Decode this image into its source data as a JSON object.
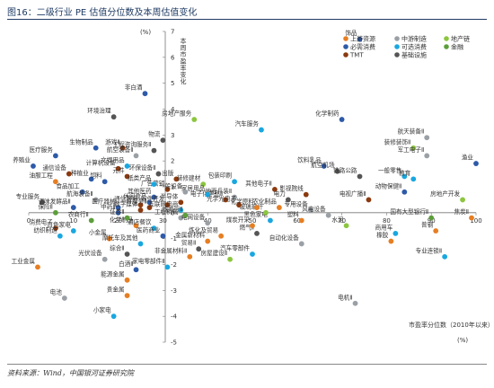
{
  "figure": {
    "title": "图16：二级行业 PE 估值分位数及本周估值变化",
    "source": "资料来源：Wind，中国银河证券研究院"
  },
  "chart_data": {
    "type": "scatter",
    "title": "",
    "xlabel": "市盈率分位数（2010年以来）",
    "xunit": "(%)",
    "ylabel": "本周市盈率变化",
    "yunit": "(%)",
    "xlim": [
      0,
      100
    ],
    "ylim": [
      -5,
      7
    ],
    "xticks": [
      "0",
      "10",
      "20",
      "30",
      "40",
      "50",
      "60",
      "70",
      "80",
      "90",
      "100"
    ],
    "yticks": [
      "-5",
      "-4",
      "-3",
      "-2",
      "-1",
      "0",
      "1",
      "2",
      "3",
      "4",
      "5",
      "6",
      "7"
    ],
    "grid": false,
    "legend_position": "top-right",
    "categories": [
      {
        "key": "upstream",
        "name": "上游资源",
        "color": "#e67e22"
      },
      {
        "key": "midstream",
        "name": "中游制造",
        "color": "#9aa0a6"
      },
      {
        "key": "realestate",
        "name": "地产链",
        "color": "#8cc63f"
      },
      {
        "key": "necessity",
        "name": "必需消费",
        "color": "#2e5aa8"
      },
      {
        "key": "optional",
        "name": "可选消费",
        "color": "#1aa7e0"
      },
      {
        "key": "finance",
        "name": "金融",
        "color": "#5c9e3a"
      },
      {
        "key": "tmt",
        "name": "TMT",
        "color": "#8b3a0f"
      },
      {
        "key": "infra",
        "name": "基础设施",
        "color": "#555555"
      }
    ],
    "points": [
      {
        "label": "饰品",
        "x": 74,
        "y": 6.7,
        "cat": "necessity"
      },
      {
        "label": "非白酒",
        "x": 26,
        "y": 4.6,
        "cat": "necessity"
      },
      {
        "label": "环境治理",
        "x": 19,
        "y": 3.7,
        "cat": "infra"
      },
      {
        "label": "房地产服务",
        "x": 37,
        "y": 3.6,
        "cat": "realestate"
      },
      {
        "label": "化学制药",
        "x": 70,
        "y": 3.6,
        "cat": "necessity"
      },
      {
        "label": "汽车服务",
        "x": 52,
        "y": 3.2,
        "cat": "optional"
      },
      {
        "label": "物流",
        "x": 30,
        "y": 2.8,
        "cat": "infra"
      },
      {
        "label": "航天装备Ⅱ",
        "x": 89,
        "y": 2.9,
        "cat": "midstream"
      },
      {
        "label": "游戏Ⅱ",
        "x": 21,
        "y": 2.5,
        "cat": "tmt"
      },
      {
        "label": "生物制品",
        "x": 15,
        "y": 2.5,
        "cat": "necessity"
      },
      {
        "label": "装修装饰Ⅱ",
        "x": 86,
        "y": 2.5,
        "cat": "realestate"
      },
      {
        "label": "医疗服务",
        "x": 6,
        "y": 2.2,
        "cat": "necessity"
      },
      {
        "label": "工程咨询服务Ⅱ",
        "x": 28,
        "y": 2.4,
        "cat": "infra"
      },
      {
        "label": "航空装备Ⅱ",
        "x": 24,
        "y": 2.2,
        "cat": "midstream"
      },
      {
        "label": "养殖业",
        "x": 1,
        "y": 1.8,
        "cat": "necessity"
      },
      {
        "label": "通信设备",
        "x": 9,
        "y": 1.5,
        "cat": "tmt"
      },
      {
        "label": "军工电子Ⅱ",
        "x": 89,
        "y": 2.2,
        "cat": "midstream"
      },
      {
        "label": "渔业",
        "x": 100,
        "y": 1.9,
        "cat": "necessity"
      },
      {
        "label": "饮料乳品",
        "x": 66,
        "y": 1.8,
        "cat": "necessity"
      },
      {
        "label": "计算机设备",
        "x": 20,
        "y": 1.7,
        "cat": "tmt"
      },
      {
        "label": "文娱用品",
        "x": 22,
        "y": 1.8,
        "cat": "optional"
      },
      {
        "label": "航空机场",
        "x": 69,
        "y": 1.6,
        "cat": "infra"
      },
      {
        "label": "油服工程",
        "x": 6,
        "y": 1.2,
        "cat": "upstream"
      },
      {
        "label": "元件",
        "x": 22,
        "y": 1.4,
        "cat": "tmt"
      },
      {
        "label": "种植业",
        "x": 14,
        "y": 1.3,
        "cat": "necessity"
      },
      {
        "label": "饲料",
        "x": 17,
        "y": 1.2,
        "cat": "necessity"
      },
      {
        "label": "环保设备Ⅱ",
        "x": 29,
        "y": 1.5,
        "cat": "infra"
      },
      {
        "label": "出版",
        "x": 33,
        "y": 1.3,
        "cat": "tmt"
      },
      {
        "label": "包装印刷",
        "x": 46,
        "y": 1.2,
        "cat": "optional"
      },
      {
        "label": "铁路公路",
        "x": 74,
        "y": 1.4,
        "cat": "infra"
      },
      {
        "label": "一般零售",
        "x": 84,
        "y": 1.4,
        "cat": "optional"
      },
      {
        "label": "教育",
        "x": 86,
        "y": 1.3,
        "cat": "optional"
      },
      {
        "label": "装修建材",
        "x": 39,
        "y": 1.1,
        "cat": "realestate"
      },
      {
        "label": "食品加工",
        "x": 12,
        "y": 0.8,
        "cat": "necessity"
      },
      {
        "label": "其他电子Ⅱ",
        "x": 55,
        "y": 0.9,
        "cat": "tmt"
      },
      {
        "label": "影视院线",
        "x": 62,
        "y": 0.7,
        "cat": "tmt"
      },
      {
        "label": "动物保健Ⅱ",
        "x": 84,
        "y": 0.8,
        "cat": "necessity"
      },
      {
        "label": "航海装备Ⅱ",
        "x": 15,
        "y": 0.5,
        "cat": "midstream"
      },
      {
        "label": "专业服务",
        "x": 3,
        "y": 0.4,
        "cat": "infra"
      },
      {
        "label": "电视广播Ⅱ",
        "x": 76,
        "y": 0.5,
        "cat": "tmt"
      },
      {
        "label": "房地产开发",
        "x": 97,
        "y": 0.5,
        "cat": "realestate"
      },
      {
        "label": "保险Ⅱ",
        "x": 6,
        "y": 0.0,
        "cat": "finance"
      },
      {
        "label": "调味发酵品Ⅱ",
        "x": 10,
        "y": 0.2,
        "cat": "necessity"
      },
      {
        "label": "医疗器械",
        "x": 20,
        "y": 0.2,
        "cat": "necessity"
      },
      {
        "label": "中药Ⅱ",
        "x": 20,
        "y": 0.0,
        "cat": "necessity"
      },
      {
        "label": "消费电子",
        "x": 6,
        "y": -0.6,
        "cat": "tmt"
      },
      {
        "label": "白色家电",
        "x": 10,
        "y": -0.7,
        "cat": "optional"
      },
      {
        "label": "纺织制造",
        "x": 7,
        "y": -0.9,
        "cat": "optional"
      },
      {
        "label": "小金属",
        "x": 18,
        "y": -1.0,
        "cat": "upstream"
      },
      {
        "label": "化学制品",
        "x": 24,
        "y": -0.5,
        "cat": "upstream"
      },
      {
        "label": "酒店餐饮",
        "x": 28,
        "y": -0.6,
        "cat": "optional"
      },
      {
        "label": "医药商业",
        "x": 30,
        "y": -0.9,
        "cat": "necessity"
      },
      {
        "label": "摩托车及其他",
        "x": 25,
        "y": -1.2,
        "cat": "optional"
      },
      {
        "label": "工业金属",
        "x": 2,
        "y": -2.1,
        "cat": "upstream"
      },
      {
        "label": "光伏设备",
        "x": 17,
        "y": -1.8,
        "cat": "midstream"
      },
      {
        "label": "白酒Ⅱ",
        "x": 24,
        "y": -2.2,
        "cat": "necessity"
      },
      {
        "label": "能源金属",
        "x": 22,
        "y": -2.6,
        "cat": "upstream"
      },
      {
        "label": "电池",
        "x": 8,
        "y": -3.3,
        "cat": "midstream"
      },
      {
        "label": "贵金属",
        "x": 22,
        "y": -3.2,
        "cat": "upstream"
      },
      {
        "label": "小家电",
        "x": 19,
        "y": -4.0,
        "cat": "optional"
      },
      {
        "label": "综合Ⅱ",
        "x": 22,
        "y": -1.6,
        "cat": "infra"
      },
      {
        "label": "家电零部件Ⅱ",
        "x": 31,
        "y": -2.1,
        "cat": "optional"
      },
      {
        "label": "金属新材料",
        "x": 40,
        "y": -1.1,
        "cat": "upstream"
      },
      {
        "label": "贸易Ⅱ",
        "x": 38,
        "y": -1.4,
        "cat": "infra"
      },
      {
        "label": "非金属材料Ⅱ",
        "x": 36,
        "y": -1.7,
        "cat": "upstream"
      },
      {
        "label": "房屋建设Ⅱ",
        "x": 45,
        "y": -1.8,
        "cat": "realestate"
      },
      {
        "label": "汽车零部件",
        "x": 50,
        "y": -1.6,
        "cat": "optional"
      },
      {
        "label": "炼化及贸易",
        "x": 43,
        "y": -0.9,
        "cat": "upstream"
      },
      {
        "label": "燃气Ⅱ",
        "x": 51,
        "y": -0.8,
        "cat": "infra"
      },
      {
        "label": "自动化设备",
        "x": 61,
        "y": -1.2,
        "cat": "midstream"
      },
      {
        "label": "煤炭开采",
        "x": 50,
        "y": -0.5,
        "cat": "upstream"
      },
      {
        "label": "黑色家电",
        "x": 54,
        "y": -0.3,
        "cat": "optional"
      },
      {
        "label": "专用设备",
        "x": 63,
        "y": 0.1,
        "cat": "midstream"
      },
      {
        "label": "风电设备",
        "x": 67,
        "y": -0.1,
        "cat": "midstream"
      },
      {
        "label": "塑料",
        "x": 61,
        "y": -0.3,
        "cat": "upstream"
      },
      {
        "label": "水泥",
        "x": 71,
        "y": -0.5,
        "cat": "realestate"
      },
      {
        "label": "国有大型银行Ⅱ",
        "x": 90,
        "y": -0.2,
        "cat": "finance"
      },
      {
        "label": "商用车",
        "x": 82,
        "y": -0.8,
        "cat": "optional"
      },
      {
        "label": "橡胶",
        "x": 81,
        "y": -1.1,
        "cat": "upstream"
      },
      {
        "label": "普钢",
        "x": 91,
        "y": -0.7,
        "cat": "upstream"
      },
      {
        "label": "专业连锁Ⅱ",
        "x": 93,
        "y": -1.7,
        "cat": "optional"
      },
      {
        "label": "焦炭Ⅱ",
        "x": 99,
        "y": -0.2,
        "cat": "upstream"
      },
      {
        "label": "电机Ⅱ",
        "x": 73,
        "y": -3.5,
        "cat": "midstream"
      },
      {
        "label": "电子化学品Ⅱ",
        "x": 44,
        "y": 0.5,
        "cat": "tmt"
      },
      {
        "label": "地面兵装Ⅱ",
        "x": 46,
        "y": 0.6,
        "cat": "midstream"
      },
      {
        "label": "家居用品",
        "x": 40,
        "y": 0.7,
        "cat": "optional"
      },
      {
        "label": "工程机械",
        "x": 34,
        "y": -0.2,
        "cat": "midstream"
      },
      {
        "label": "电网设备",
        "x": 40,
        "y": -0.4,
        "cat": "midstream"
      },
      {
        "label": "玻璃玻纤",
        "x": 53,
        "y": 0.0,
        "cat": "realestate"
      },
      {
        "label": "通信服务",
        "x": 25,
        "y": 0.3,
        "cat": "tmt"
      },
      {
        "label": "休闲食品",
        "x": 27,
        "y": 0.4,
        "cat": "necessity"
      },
      {
        "label": "其他医药",
        "x": 28,
        "y": 0.6,
        "cat": "necessity"
      },
      {
        "label": "证券Ⅱ",
        "x": 22,
        "y": -0.2,
        "cat": "finance"
      },
      {
        "label": "光学光电子",
        "x": 47,
        "y": 0.3,
        "cat": "tmt"
      },
      {
        "label": "化学原料",
        "x": 51,
        "y": 0.2,
        "cat": "upstream"
      },
      {
        "label": "农化制品",
        "x": 56,
        "y": 0.2,
        "cat": "upstream"
      },
      {
        "label": "电力",
        "x": 58,
        "y": 0.5,
        "cat": "infra"
      },
      {
        "label": "半导体",
        "x": 34,
        "y": 0.4,
        "cat": "tmt"
      },
      {
        "label": "软件开发",
        "x": 31,
        "y": 0.3,
        "cat": "tmt"
      },
      {
        "label": "IT服务Ⅱ",
        "x": 27,
        "y": 0.2,
        "cat": "tmt"
      },
      {
        "label": "互联网电商",
        "x": 34,
        "y": 0.1,
        "cat": "optional"
      },
      {
        "label": "数字媒体",
        "x": 25,
        "y": 0.1,
        "cat": "tmt"
      },
      {
        "label": "广告营销",
        "x": 31,
        "y": 0.9,
        "cat": "tmt"
      },
      {
        "label": "纸类产品",
        "x": 28,
        "y": 1.1,
        "cat": "optional"
      },
      {
        "label": "一般设备",
        "x": 35,
        "y": 0.8,
        "cat": "midstream"
      },
      {
        "label": "城商行Ⅱ",
        "x": 35,
        "y": -0.1,
        "cat": "finance"
      },
      {
        "label": "农商行Ⅱ",
        "x": 14,
        "y": -0.3,
        "cat": "finance"
      }
    ]
  }
}
